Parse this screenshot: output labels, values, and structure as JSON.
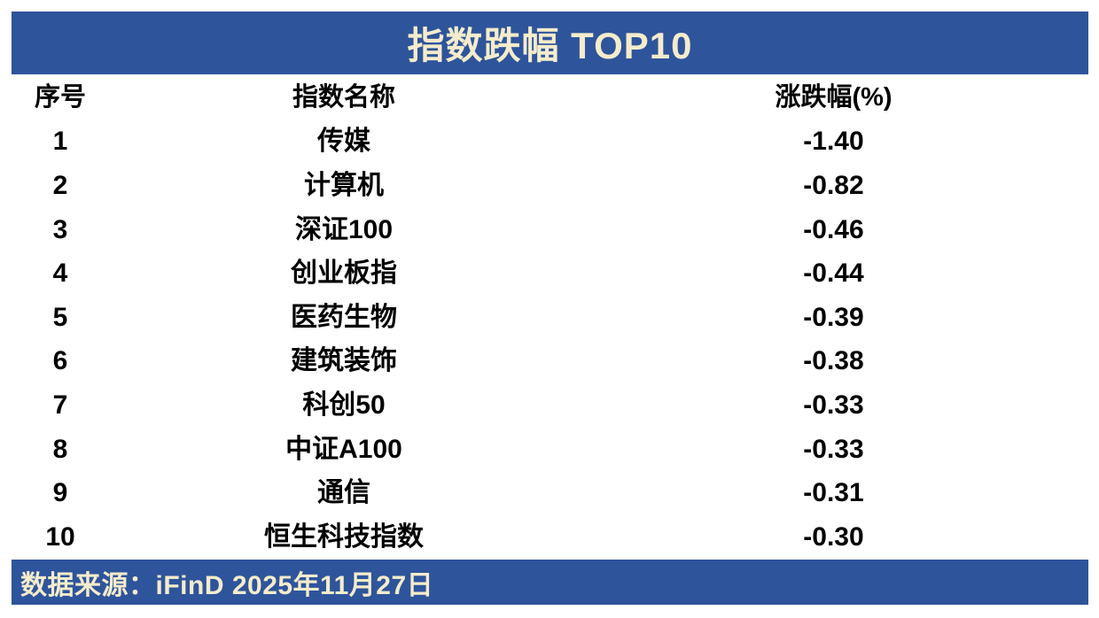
{
  "chart_data": {
    "type": "table",
    "title": "指数跌幅 TOP10",
    "columns": {
      "rank": "序号",
      "name": "指数名称",
      "change": "涨跌幅(%)"
    },
    "rows": [
      {
        "rank": "1",
        "name": "传媒",
        "change": "-1.40",
        "change_value": -1.4
      },
      {
        "rank": "2",
        "name": "计算机",
        "change": "-0.82",
        "change_value": -0.82
      },
      {
        "rank": "3",
        "name": "深证100",
        "change": "-0.46",
        "change_value": -0.46
      },
      {
        "rank": "4",
        "name": "创业板指",
        "change": "-0.44",
        "change_value": -0.44
      },
      {
        "rank": "5",
        "name": "医药生物",
        "change": "-0.39",
        "change_value": -0.39
      },
      {
        "rank": "6",
        "name": "建筑装饰",
        "change": "-0.38",
        "change_value": -0.38
      },
      {
        "rank": "7",
        "name": "科创50",
        "change": "-0.33",
        "change_value": -0.33
      },
      {
        "rank": "8",
        "name": "中证A100",
        "change": "-0.33",
        "change_value": -0.33
      },
      {
        "rank": "9",
        "name": "通信",
        "change": "-0.31",
        "change_value": -0.31
      },
      {
        "rank": "10",
        "name": "恒生科技指数",
        "change": "-0.30",
        "change_value": -0.3
      }
    ],
    "source": "数据来源：iFinD 2025年11月27日"
  },
  "colors": {
    "bar_blue": "#2E549B",
    "bar_text": "#F4ECCB",
    "body_text": "#000000"
  }
}
